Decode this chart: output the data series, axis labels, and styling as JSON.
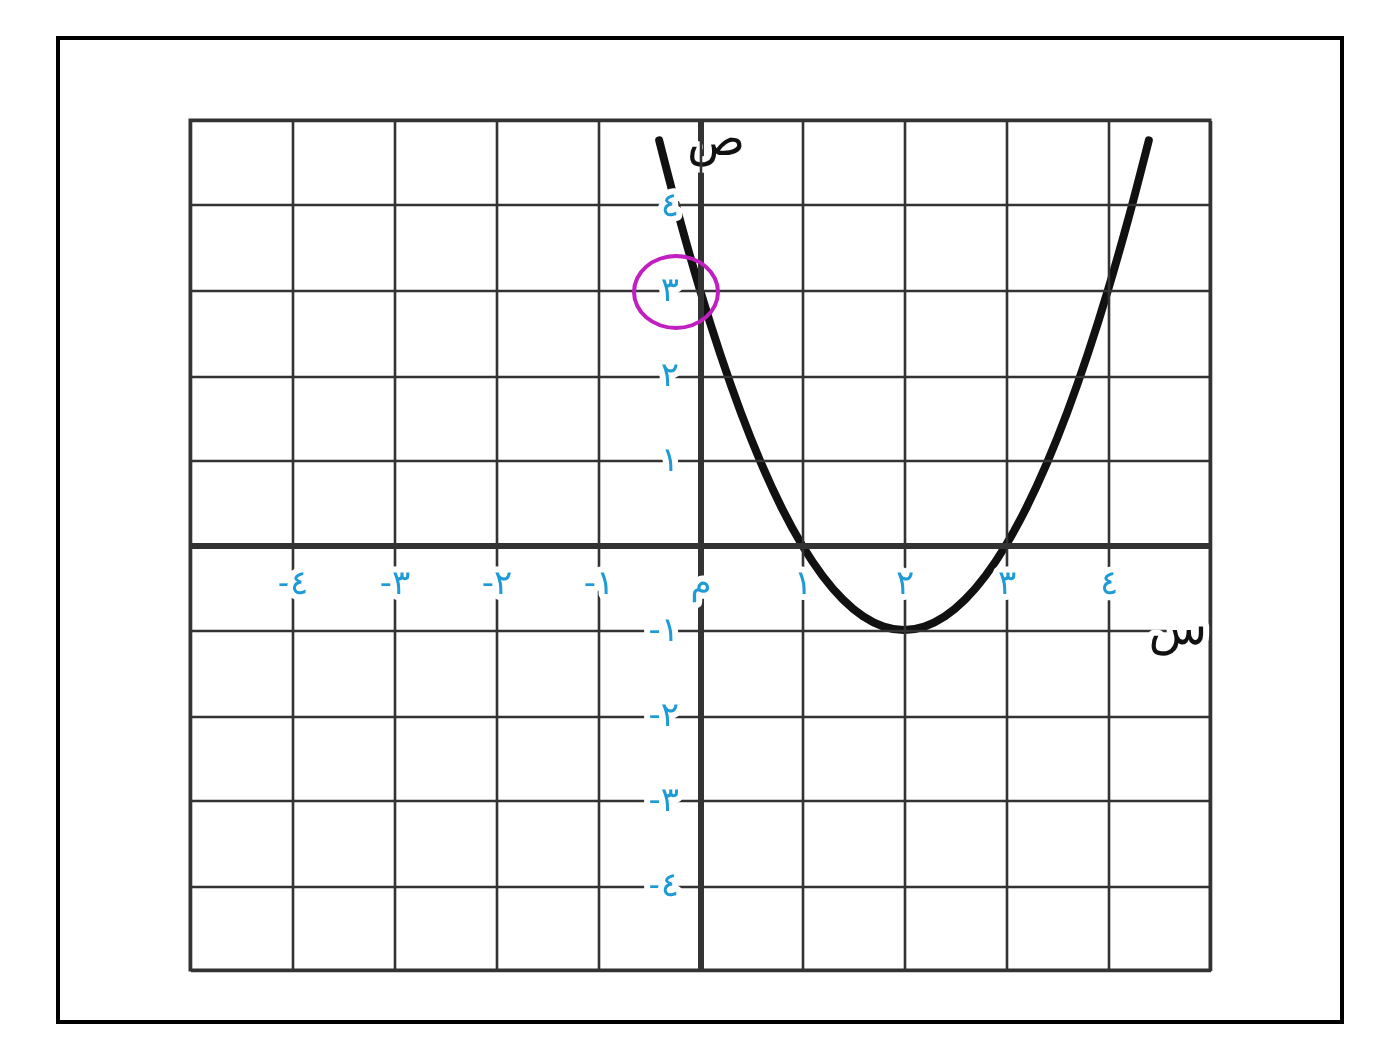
{
  "chart_data": {
    "type": "line",
    "xlabel": "س",
    "ylabel": "ص",
    "x": [
      -0.4,
      -0.2,
      0,
      0.2,
      0.4,
      0.6,
      0.8,
      1,
      1.2,
      1.4,
      1.6,
      1.8,
      2,
      2.2,
      2.4,
      2.6,
      2.8,
      3,
      3.2,
      3.4,
      3.6,
      3.8,
      4,
      4.2,
      4.4
    ],
    "series": [
      {
        "color": "#111111",
        "values": [
          4.76,
          3.84,
          3,
          2.24,
          1.56,
          0.96,
          0.44,
          0,
          -0.36,
          -0.64,
          -0.84,
          -0.96,
          -1,
          -0.96,
          -0.84,
          -0.64,
          -0.36,
          0,
          0.44,
          0.96,
          1.56,
          2.24,
          3,
          3.84,
          4.76
        ]
      }
    ],
    "xlim": [
      -5,
      5
    ],
    "ylim": [
      -5,
      5
    ],
    "xticks": [
      {
        "value": -5,
        "label": null
      },
      {
        "value": -4,
        "label": "-٤"
      },
      {
        "value": -3,
        "label": "-٣"
      },
      {
        "value": -2,
        "label": "-٢"
      },
      {
        "value": -1,
        "label": "-١"
      },
      {
        "value": 0,
        "label": "م"
      },
      {
        "value": 1,
        "label": "١"
      },
      {
        "value": 2,
        "label": "٢"
      },
      {
        "value": 3,
        "label": "٣"
      },
      {
        "value": 4,
        "label": "٤"
      },
      {
        "value": 5,
        "label": null
      }
    ],
    "yticks": [
      {
        "value": -5,
        "label": null
      },
      {
        "value": -4,
        "label": "-٤"
      },
      {
        "value": -3,
        "label": "-٣"
      },
      {
        "value": -2,
        "label": "-٢"
      },
      {
        "value": -1,
        "label": "-١"
      },
      {
        "value": 0,
        "label": null
      },
      {
        "value": 1,
        "label": "١"
      },
      {
        "value": 2,
        "label": "٢"
      },
      {
        "value": 3,
        "label": "٣"
      },
      {
        "value": 4,
        "label": "٤"
      },
      {
        "value": 5,
        "label": null
      }
    ],
    "grid": true
  }
}
